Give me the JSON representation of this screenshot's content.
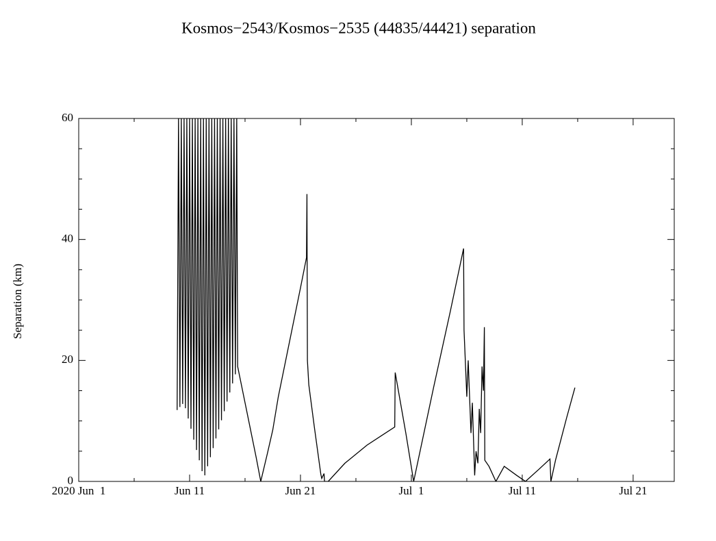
{
  "chart_data": {
    "type": "line",
    "title": "Kosmos−2543/Kosmos−2535 (44835/44421) separation",
    "y_label": "Separation (km)",
    "xlim": [
      "2020-06-01T00:00",
      "2020-07-24T17:00"
    ],
    "ylim": [
      0,
      60
    ],
    "xticks": [
      {
        "value": "2020-06-01T00:00",
        "label": "2020 Jun  1"
      },
      {
        "value": "2020-06-11T00:00",
        "label": "Jun 11"
      },
      {
        "value": "2020-06-21T00:00",
        "label": "Jun 21"
      },
      {
        "value": "2020-07-01T00:00",
        "label": "Jul  1"
      },
      {
        "value": "2020-07-11T00:00",
        "label": "Jul 11"
      },
      {
        "value": "2020-07-21T00:00",
        "label": "Jul 21"
      }
    ],
    "xminorticks": [
      "2020-06-06T00:00",
      "2020-06-16T00:00",
      "2020-06-26T00:00",
      "2020-07-06T00:00",
      "2020-07-16T00:00"
    ],
    "yticks": [
      0,
      20,
      40,
      60
    ],
    "yminorticks": [
      5,
      10,
      15,
      25,
      30,
      35,
      45,
      50,
      55
    ],
    "color": "#000000",
    "x": [
      "2020-06-09T21:00",
      "2020-06-10T00:00",
      "2020-06-10T03:00",
      "2020-06-10T06:00",
      "2020-06-10T09:00",
      "2020-06-10T12:00",
      "2020-06-10T15:00",
      "2020-06-10T18:00",
      "2020-06-10T21:00",
      "2020-06-11T00:00",
      "2020-06-11T03:00",
      "2020-06-11T06:00",
      "2020-06-11T09:00",
      "2020-06-11T12:00",
      "2020-06-11T15:00",
      "2020-06-11T18:00",
      "2020-06-11T21:00",
      "2020-06-12T00:00",
      "2020-06-12T03:00",
      "2020-06-12T06:00",
      "2020-06-12T09:00",
      "2020-06-12T12:00",
      "2020-06-12T15:00",
      "2020-06-12T18:00",
      "2020-06-12T21:00",
      "2020-06-13T00:00",
      "2020-06-13T03:00",
      "2020-06-13T06:00",
      "2020-06-13T09:00",
      "2020-06-13T12:00",
      "2020-06-13T15:00",
      "2020-06-13T18:00",
      "2020-06-13T21:00",
      "2020-06-14T00:00",
      "2020-06-14T03:00",
      "2020-06-14T06:00",
      "2020-06-14T09:00",
      "2020-06-14T12:00",
      "2020-06-14T15:00",
      "2020-06-14T18:00",
      "2020-06-14T21:00",
      "2020-06-15T00:00",
      "2020-06-15T03:00",
      "2020-06-15T06:00",
      "2020-06-15T08:00",
      "2020-06-15T12:00",
      "2020-06-16T00:00",
      "2020-06-16T12:00",
      "2020-06-17T00:00",
      "2020-06-17T10:00",
      "2020-06-18T00:00",
      "2020-06-18T12:00",
      "2020-06-19T00:00",
      "2020-06-19T12:00",
      "2020-06-20T00:00",
      "2020-06-20T12:00",
      "2020-06-21T00:00",
      "2020-06-21T13:00",
      "2020-06-21T14:00",
      "2020-06-21T15:00",
      "2020-06-21T18:00",
      "2020-06-22T06:00",
      "2020-06-22T20:00",
      "2020-06-22T22:00",
      "2020-06-23T03:00",
      "2020-06-23T04:00",
      "2020-06-23T12:00",
      "2020-06-25T00:00",
      "2020-06-27T00:00",
      "2020-06-29T12:00",
      "2020-06-29T13:00",
      "2020-06-30T12:00",
      "2020-07-01T05:00",
      "2020-07-03T00:00",
      "2020-07-04T12:00",
      "2020-07-05T17:00",
      "2020-07-05T18:00",
      "2020-07-06T00:00",
      "2020-07-06T03:00",
      "2020-07-06T09:00",
      "2020-07-06T12:00",
      "2020-07-06T17:00",
      "2020-07-06T20:00",
      "2020-07-07T00:00",
      "2020-07-07T03:00",
      "2020-07-07T06:00",
      "2020-07-07T09:00",
      "2020-07-07T12:00",
      "2020-07-07T14:00",
      "2020-07-07T15:00",
      "2020-07-08T00:00",
      "2020-07-08T15:00",
      "2020-07-09T09:00",
      "2020-07-10T12:00",
      "2020-07-11T07:00",
      "2020-07-12T12:00",
      "2020-07-13T12:00",
      "2020-07-13T14:00",
      "2020-07-14T00:00",
      "2020-07-14T12:00",
      "2020-07-15T00:00",
      "2020-07-15T18:00"
    ],
    "values": [
      11.8,
      60,
      12.3,
      60,
      12.8,
      60,
      12.1,
      60,
      10.4,
      60,
      8.7,
      60,
      6.9,
      60,
      5.2,
      60,
      3.5,
      60,
      1.7,
      60,
      1.0,
      60,
      2.5,
      60,
      4.0,
      60,
      5.5,
      60,
      7.1,
      60,
      8.6,
      60,
      10.1,
      60,
      11.6,
      60,
      13.2,
      60,
      14.7,
      60,
      16.2,
      60,
      17.7,
      60,
      19,
      17.5,
      13,
      8.5,
      4,
      0,
      4.5,
      8.5,
      14,
      18.5,
      23,
      27.5,
      32,
      37,
      47.5,
      20,
      16,
      9,
      1.2,
      0.5,
      1.3,
      0,
      0,
      3,
      6,
      9,
      18,
      8,
      0,
      15.5,
      28,
      38.5,
      25,
      14,
      20,
      8,
      13,
      1,
      5,
      3,
      12,
      8,
      19,
      15,
      25.5,
      3.5,
      2.5,
      0,
      2.5,
      1,
      0,
      2,
      3.7,
      0,
      3.5,
      7,
      10.5,
      15.5
    ]
  }
}
